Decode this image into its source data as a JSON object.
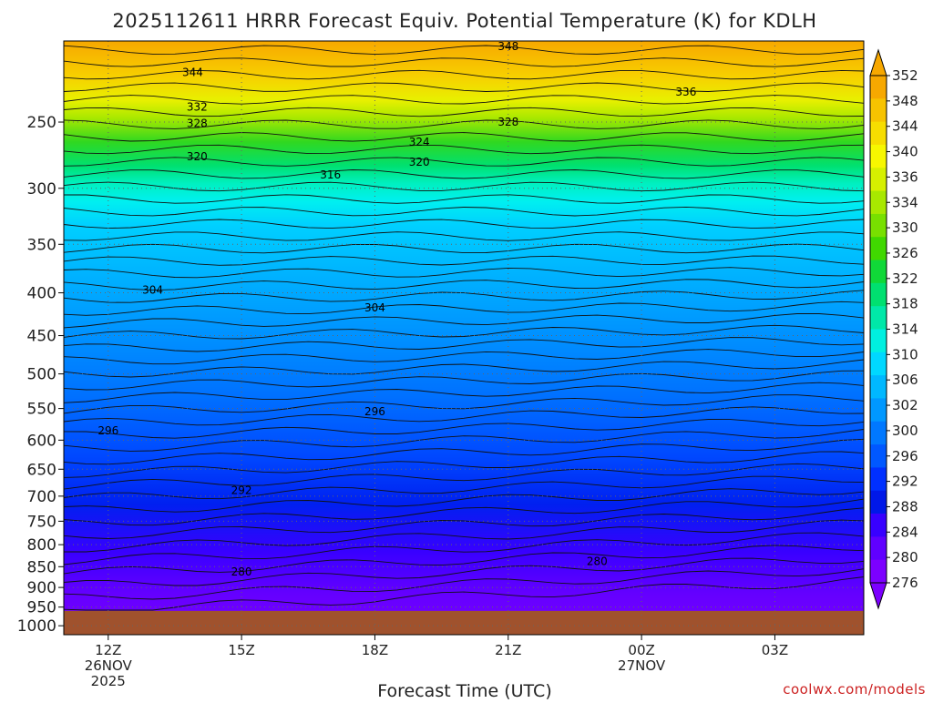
{
  "chart_data": {
    "type": "heatmap",
    "title": "2025112611 HRRR Forecast Equiv. Potential Temperature (K) for KDLH",
    "xlabel": "Forecast Time (UTC)",
    "ylabel": "",
    "credit": "coolwx.com/models",
    "x_ticks": [
      {
        "label": "12Z",
        "sub1": "26NOV",
        "sub2": "2025",
        "hour": 0
      },
      {
        "label": "15Z",
        "sub1": "",
        "sub2": "",
        "hour": 3
      },
      {
        "label": "18Z",
        "sub1": "",
        "sub2": "",
        "hour": 6
      },
      {
        "label": "21Z",
        "sub1": "",
        "sub2": "",
        "hour": 9
      },
      {
        "label": "00Z",
        "sub1": "27NOV",
        "sub2": "",
        "hour": 12
      },
      {
        "label": "03Z",
        "sub1": "",
        "sub2": "",
        "hour": 15
      }
    ],
    "xlim": [
      -1,
      17
    ],
    "y_ticks": [
      "250",
      "300",
      "350",
      "400",
      "450",
      "500",
      "550",
      "600",
      "650",
      "700",
      "750",
      "800",
      "850",
      "900",
      "950",
      "1000"
    ],
    "y_tick_values": [
      250,
      300,
      350,
      400,
      450,
      500,
      550,
      600,
      650,
      700,
      750,
      800,
      850,
      900,
      950,
      1000
    ],
    "ylim_hPa": [
      200,
      1025
    ],
    "y_scale": "log",
    "ground_hPa": 960,
    "colorbar": {
      "labels": [
        "352",
        "348",
        "344",
        "340",
        "336",
        "334",
        "330",
        "326",
        "322",
        "318",
        "314",
        "310",
        "306",
        "302",
        "300",
        "296",
        "292",
        "288",
        "284",
        "280",
        "276"
      ],
      "colors": [
        "#f7a800",
        "#f7c300",
        "#f7dd00",
        "#f7f700",
        "#d6f000",
        "#a8e800",
        "#78e000",
        "#40d800",
        "#10d838",
        "#00e070",
        "#00e8a8",
        "#00f0e0",
        "#00d8ff",
        "#00b8ff",
        "#0098ff",
        "#0078ff",
        "#0058ff",
        "#0030ff",
        "#0018e8",
        "#3800ff",
        "#6000ff",
        "#7c00ff"
      ]
    },
    "contour_labels": [
      {
        "text": "348",
        "hour": 9.0,
        "hPa": 203
      },
      {
        "text": "344",
        "hour": 1.9,
        "hPa": 218
      },
      {
        "text": "336",
        "hour": 13.0,
        "hPa": 230
      },
      {
        "text": "332",
        "hour": 2.0,
        "hPa": 240
      },
      {
        "text": "328",
        "hour": 2.0,
        "hPa": 251
      },
      {
        "text": "328",
        "hour": 9.0,
        "hPa": 250
      },
      {
        "text": "324",
        "hour": 7.0,
        "hPa": 264
      },
      {
        "text": "320",
        "hour": 2.0,
        "hPa": 275
      },
      {
        "text": "320",
        "hour": 7.0,
        "hPa": 279
      },
      {
        "text": "316",
        "hour": 5.0,
        "hPa": 289
      },
      {
        "text": "304",
        "hour": 1.0,
        "hPa": 397
      },
      {
        "text": "304",
        "hour": 6.0,
        "hPa": 417
      },
      {
        "text": "296",
        "hour": 0.0,
        "hPa": 585
      },
      {
        "text": "296",
        "hour": 6.0,
        "hPa": 555
      },
      {
        "text": "292",
        "hour": 3.0,
        "hPa": 689
      },
      {
        "text": "280",
        "hour": 3.0,
        "hPa": 862
      },
      {
        "text": "280",
        "hour": 11.0,
        "hPa": 838
      }
    ]
  }
}
